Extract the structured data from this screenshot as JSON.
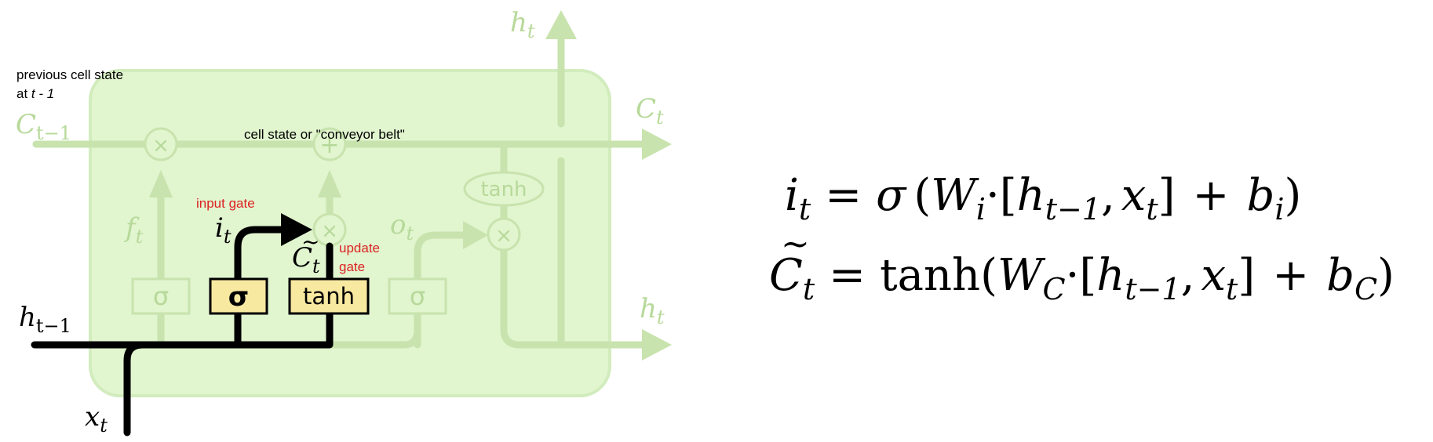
{
  "diagram": {
    "annotations": {
      "prev_cell_line1": "previous cell state",
      "prev_cell_line2_prefix": "at ",
      "prev_cell_line2_var": "t - 1",
      "cell_state": "cell state or \"conveyor belt\"",
      "input_gate": "input gate",
      "update_gate_line1": "update",
      "update_gate_line2": "gate"
    },
    "labels": {
      "c_prev_base": "C",
      "c_prev_sub": "t−1",
      "c_t_base": "C",
      "c_t_sub": "t",
      "h_top_base": "h",
      "h_top_sub": "t",
      "h_right_base": "h",
      "h_right_sub": "t",
      "h_prev_base": "h",
      "h_prev_sub": "t−1",
      "x_t_base": "x",
      "x_t_sub": "t",
      "f_t_base": "f",
      "f_t_sub": "t",
      "o_t_base": "o",
      "o_t_sub": "t",
      "i_t_base": "i",
      "i_t_sub": "t",
      "c_tilde_base": "C",
      "c_tilde_accent": "~",
      "c_tilde_sub": "t"
    },
    "blocks": {
      "forget_sigma": "σ",
      "input_sigma": "σ",
      "candidate_tanh": "tanh",
      "output_sigma": "σ",
      "cell_tanh": "tanh"
    },
    "ops": {
      "forget_multiply": "×",
      "cell_add": "+",
      "input_multiply": "×",
      "output_multiply": "×"
    },
    "colors": {
      "cell_fill": "#e1f5cf",
      "cell_border": "#d2ecbd",
      "faded_line": "#c8e3ad",
      "faded_text": "#b7d99a",
      "active_line": "#000000",
      "gate_fill": "#f8e9a1",
      "annotation_red": "#dd2222"
    }
  },
  "equations": {
    "eq1": {
      "lhs": "i",
      "lhs_sub": "t",
      "eq": "=",
      "fn": "σ",
      "open": "(",
      "w": "W",
      "w_sub": "i",
      "dot": "·",
      "lbr": "[",
      "h": "h",
      "h_sub": "t−1",
      "comma": ",",
      "x": "x",
      "x_sub": "t",
      "rbr": "]",
      "plus": "+",
      "b": "b",
      "b_sub": "i",
      "close": ")"
    },
    "eq2": {
      "lhs": "C",
      "lhs_accent": "~",
      "lhs_sub": "t",
      "eq": "=",
      "fn": "tanh",
      "open": "(",
      "w": "W",
      "w_sub": "C",
      "dot": "·",
      "lbr": "[",
      "h": "h",
      "h_sub": "t−1",
      "comma": ",",
      "x": "x",
      "x_sub": "t",
      "rbr": "]",
      "plus": "+",
      "b": "b",
      "b_sub": "C",
      "close": ")"
    }
  }
}
